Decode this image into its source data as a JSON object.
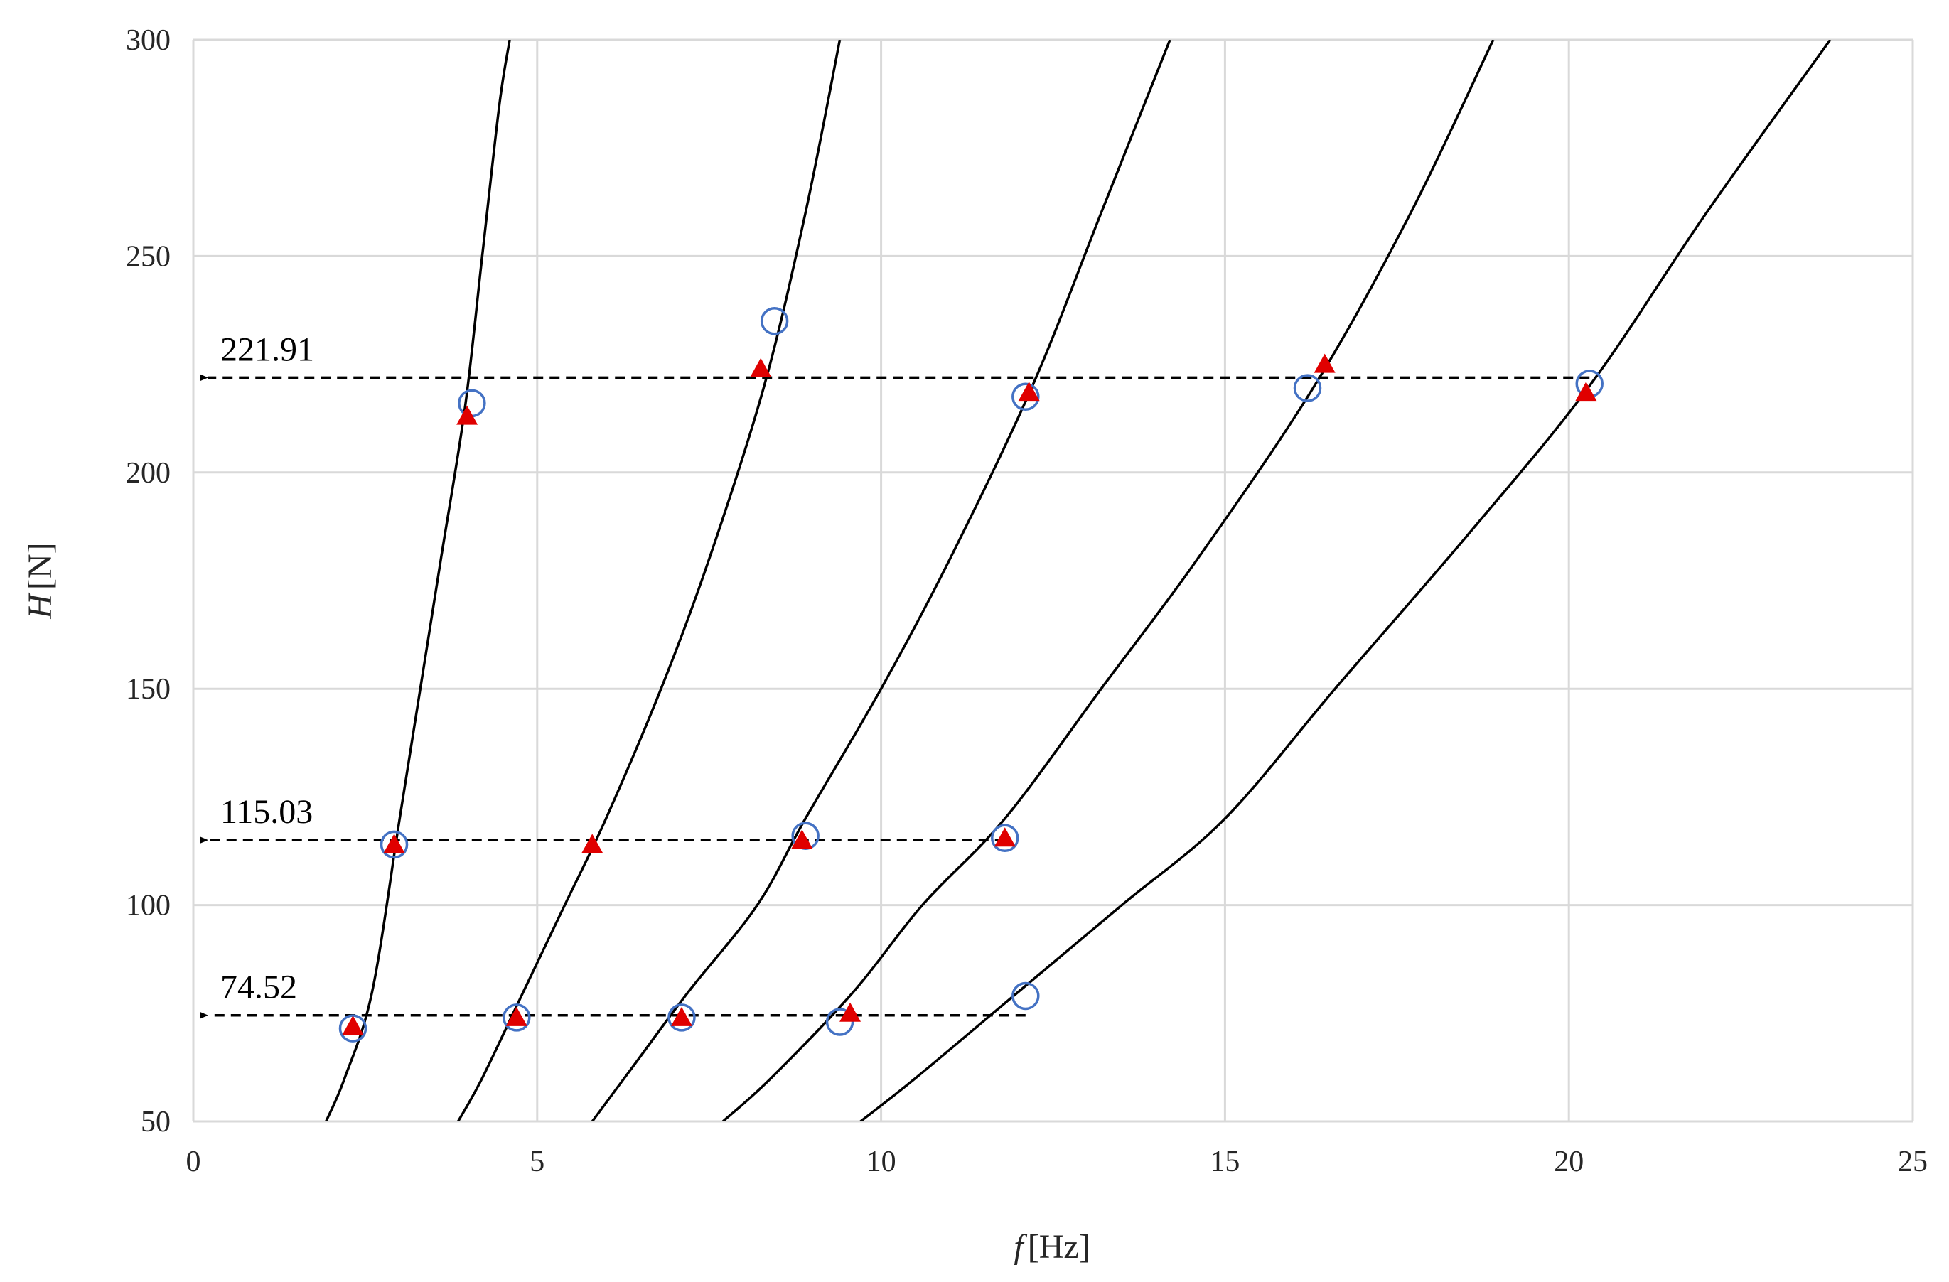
{
  "chart_data": {
    "type": "scatter",
    "title": "",
    "xlabel": {
      "symbol": "f",
      "unit": "[Hz]"
    },
    "ylabel": {
      "symbol": "H",
      "unit": "[N]"
    },
    "xlim": [
      0,
      25
    ],
    "ylim": [
      50,
      300
    ],
    "xticks": [
      "0",
      "5",
      "10",
      "15",
      "20",
      "25"
    ],
    "yticks": [
      "50",
      "100",
      "150",
      "200",
      "250",
      "300"
    ],
    "grid": true,
    "legend": "none",
    "colors": {
      "curve": "#000000",
      "circle": "#4472c4",
      "triangle": "#e00000",
      "grid": "#d9d9d9"
    },
    "curves": [
      {
        "points": [
          [
            1.93,
            50
          ],
          [
            2.2,
            60
          ],
          [
            2.6,
            80
          ],
          [
            3.0,
            120
          ],
          [
            3.3,
            150
          ],
          [
            3.6,
            180
          ],
          [
            3.95,
            215
          ],
          [
            4.2,
            250
          ],
          [
            4.45,
            285
          ],
          [
            4.6,
            300
          ]
        ]
      },
      {
        "points": [
          [
            3.85,
            50
          ],
          [
            4.2,
            60
          ],
          [
            4.8,
            80
          ],
          [
            5.4,
            100
          ],
          [
            6.0,
            120
          ],
          [
            6.8,
            150
          ],
          [
            7.5,
            180
          ],
          [
            8.3,
            220
          ],
          [
            8.9,
            260
          ],
          [
            9.4,
            300
          ]
        ]
      },
      {
        "points": [
          [
            5.8,
            50
          ],
          [
            6.5,
            65
          ],
          [
            7.2,
            80
          ],
          [
            8.2,
            100
          ],
          [
            8.9,
            120
          ],
          [
            10.0,
            150
          ],
          [
            11.0,
            180
          ],
          [
            12.2,
            220
          ],
          [
            13.2,
            260
          ],
          [
            14.2,
            300
          ]
        ]
      },
      {
        "points": [
          [
            7.7,
            50
          ],
          [
            8.4,
            60
          ],
          [
            9.6,
            80
          ],
          [
            10.6,
            100
          ],
          [
            11.8,
            120
          ],
          [
            13.2,
            150
          ],
          [
            14.6,
            180
          ],
          [
            16.3,
            220
          ],
          [
            17.7,
            260
          ],
          [
            18.9,
            300
          ]
        ]
      },
      {
        "points": [
          [
            9.7,
            50
          ],
          [
            10.5,
            60
          ],
          [
            12.0,
            80
          ],
          [
            13.5,
            100
          ],
          [
            15.0,
            120
          ],
          [
            16.6,
            150
          ],
          [
            18.5,
            185
          ],
          [
            20.3,
            220
          ],
          [
            22.0,
            260
          ],
          [
            23.8,
            300
          ]
        ]
      }
    ],
    "circles": [
      [
        2.32,
        71.5
      ],
      [
        4.7,
        74
      ],
      [
        7.1,
        74
      ],
      [
        9.4,
        73
      ],
      [
        12.1,
        79
      ],
      [
        2.92,
        114
      ],
      [
        8.9,
        116
      ],
      [
        11.8,
        115.5
      ],
      [
        4.05,
        216
      ],
      [
        8.45,
        235
      ],
      [
        12.1,
        217.5
      ],
      [
        16.2,
        219.5
      ],
      [
        20.3,
        220.5
      ]
    ],
    "triangles": [
      [
        2.32,
        72
      ],
      [
        4.7,
        74
      ],
      [
        7.1,
        74
      ],
      [
        9.55,
        75
      ],
      [
        2.92,
        114
      ],
      [
        5.8,
        114
      ],
      [
        8.85,
        115
      ],
      [
        11.8,
        115.5
      ],
      [
        3.98,
        213
      ],
      [
        8.25,
        224
      ],
      [
        12.15,
        218.5
      ],
      [
        16.45,
        225
      ],
      [
        20.25,
        218.5
      ]
    ],
    "reference_lines": [
      {
        "label": "221.91",
        "y": 221.91,
        "x_end": 20.3
      },
      {
        "label": "115.03",
        "y": 115.03,
        "x_end": 11.8
      },
      {
        "label": "74.52",
        "y": 74.52,
        "x_end": 12.1
      }
    ]
  }
}
